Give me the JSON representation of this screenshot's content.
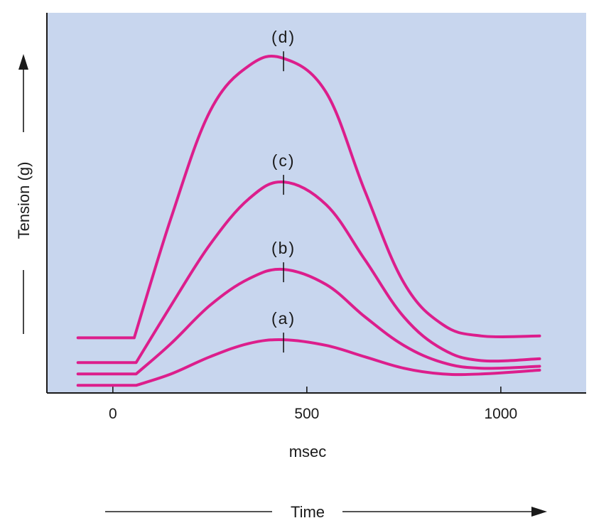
{
  "colors": {
    "plot_background": "#c8d6ee",
    "curve": "#dc1e8c",
    "axis": "#1a1a1a"
  },
  "chart_data": {
    "type": "line",
    "title": "",
    "xlabel": "msec",
    "x_arrow_label": "Time",
    "ylabel": "Tension (g)",
    "xlim": [
      -170,
      1220
    ],
    "ylim": [
      0,
      10
    ],
    "x_ticks": [
      0,
      500,
      1000
    ],
    "x_tick_labels": [
      "0",
      "500",
      "1000"
    ],
    "y_ticks": [],
    "grid": false,
    "legend": "none",
    "series": [
      {
        "name": "(a)",
        "peak_x": 440,
        "x": [
          -90,
          60,
          150,
          250,
          350,
          440,
          550,
          650,
          750,
          850,
          950,
          1100
        ],
        "y": [
          0.2,
          0.2,
          0.5,
          0.95,
          1.3,
          1.4,
          1.25,
          0.95,
          0.65,
          0.5,
          0.5,
          0.6
        ]
      },
      {
        "name": "(b)",
        "peak_x": 440,
        "x": [
          -90,
          60,
          150,
          250,
          350,
          440,
          550,
          650,
          750,
          850,
          950,
          1100
        ],
        "y": [
          0.5,
          0.5,
          1.3,
          2.3,
          3.0,
          3.25,
          2.85,
          2.0,
          1.25,
          0.8,
          0.65,
          0.7
        ]
      },
      {
        "name": "(c)",
        "peak_x": 440,
        "x": [
          -90,
          60,
          150,
          250,
          350,
          440,
          550,
          650,
          750,
          850,
          950,
          1100
        ],
        "y": [
          0.8,
          0.8,
          2.3,
          3.9,
          5.1,
          5.55,
          4.95,
          3.5,
          2.0,
          1.15,
          0.85,
          0.9
        ]
      },
      {
        "name": "(d)",
        "peak_x": 440,
        "x": [
          -90,
          55,
          150,
          250,
          350,
          440,
          550,
          650,
          750,
          850,
          950,
          1100
        ],
        "y": [
          1.45,
          1.45,
          4.6,
          7.4,
          8.6,
          8.8,
          7.9,
          5.3,
          2.9,
          1.8,
          1.5,
          1.5
        ]
      }
    ]
  }
}
